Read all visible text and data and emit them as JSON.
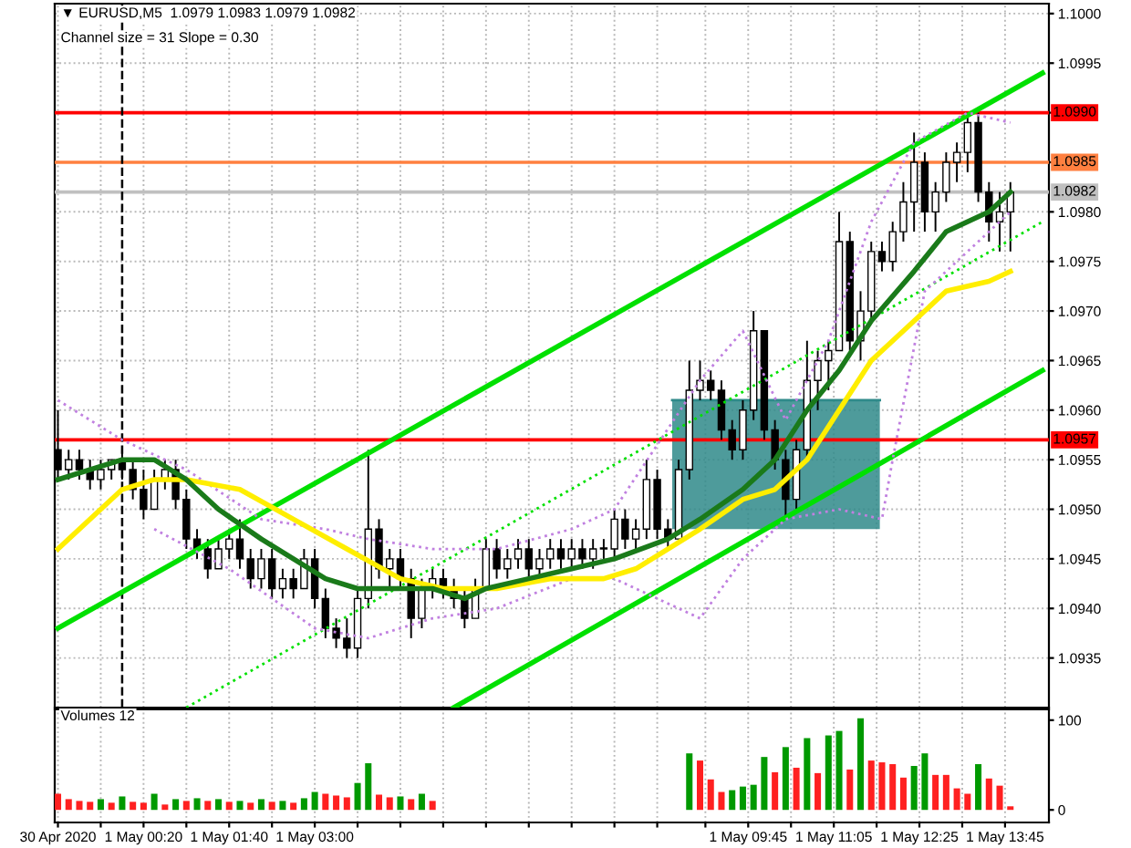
{
  "chart_data": [
    {
      "type": "candlestick",
      "title": "▼ EURUSD,M5  1.0979 1.0983 1.0979 1.0982",
      "subtitle": "Channel size = 31 Slope = 0.30",
      "x": [
        "2020-04-30T23:00",
        "2020-04-30T23:10",
        "2020-04-30T23:20",
        "2020-04-30T23:30",
        "2020-04-30T23:40",
        "2020-04-30T23:50",
        "2020-05-01T00:00",
        "2020-05-01T00:10",
        "2020-05-01T00:20",
        "2020-05-01T00:30",
        "2020-05-01T00:40",
        "2020-05-01T00:50",
        "2020-05-01T01:00",
        "2020-05-01T01:10",
        "2020-05-01T01:20",
        "2020-05-01T01:30",
        "2020-05-01T01:40",
        "2020-05-01T01:50",
        "2020-05-01T02:00",
        "2020-05-01T02:10",
        "2020-05-01T02:20",
        "2020-05-01T02:30",
        "2020-05-01T02:40",
        "2020-05-01T02:50",
        "2020-05-01T03:00",
        "2020-05-01T03:10",
        "2020-05-01T03:20",
        "2020-05-01T03:30",
        "2020-05-01T03:40",
        "2020-05-01T03:50",
        "2020-05-01T04:00",
        "2020-05-01T04:10",
        "2020-05-01T04:20",
        "2020-05-01T04:30",
        "2020-05-01T04:40",
        "2020-05-01T04:50",
        "2020-05-01T05:00",
        "2020-05-01T05:10",
        "2020-05-01T05:20",
        "2020-05-01T05:30",
        "2020-05-01T05:40",
        "2020-05-01T05:50",
        "2020-05-01T06:00",
        "2020-05-01T06:10",
        "2020-05-01T06:20",
        "2020-05-01T06:30",
        "2020-05-01T06:40",
        "2020-05-01T06:50",
        "2020-05-01T07:00",
        "2020-05-01T07:10",
        "2020-05-01T07:20",
        "2020-05-01T07:30",
        "2020-05-01T07:40",
        "2020-05-01T07:50",
        "2020-05-01T08:00",
        "2020-05-01T08:10",
        "2020-05-01T08:20",
        "2020-05-01T08:30",
        "2020-05-01T08:40",
        "2020-05-01T08:50",
        "2020-05-01T09:00",
        "2020-05-01T09:10",
        "2020-05-01T09:20",
        "2020-05-01T09:30",
        "2020-05-01T09:40",
        "2020-05-01T09:50",
        "2020-05-01T10:00",
        "2020-05-01T10:10",
        "2020-05-01T10:20",
        "2020-05-01T10:30",
        "2020-05-01T10:40",
        "2020-05-01T10:50",
        "2020-05-01T11:00",
        "2020-05-01T11:10",
        "2020-05-01T11:20",
        "2020-05-01T11:30",
        "2020-05-01T11:40",
        "2020-05-01T11:50",
        "2020-05-01T12:00",
        "2020-05-01T12:10",
        "2020-05-01T12:20",
        "2020-05-01T12:30",
        "2020-05-01T12:40",
        "2020-05-01T12:50",
        "2020-05-01T13:00",
        "2020-05-01T13:10",
        "2020-05-01T13:20",
        "2020-05-01T13:30",
        "2020-05-01T13:40",
        "2020-05-01T13:50"
      ],
      "ohlc": [
        [
          1.0956,
          1.096,
          1.0953,
          1.0954
        ],
        [
          1.0954,
          1.0956,
          1.0953,
          1.0955
        ],
        [
          1.0955,
          1.0956,
          1.0953,
          1.0954
        ],
        [
          1.0954,
          1.0955,
          1.0952,
          1.0953
        ],
        [
          1.0953,
          1.0955,
          1.0952,
          1.0954
        ],
        [
          1.0954,
          1.0955,
          1.0953,
          1.0955
        ],
        [
          1.0955,
          1.0956,
          1.0953,
          1.0954
        ],
        [
          1.0954,
          1.0955,
          1.0951,
          1.0952
        ],
        [
          1.0952,
          1.0954,
          1.0949,
          1.095
        ],
        [
          1.095,
          1.0954,
          1.095,
          1.0953
        ],
        [
          1.0953,
          1.0955,
          1.0952,
          1.0954
        ],
        [
          1.0954,
          1.0955,
          1.095,
          1.0951
        ],
        [
          1.0951,
          1.0952,
          1.0946,
          1.0947
        ],
        [
          1.0947,
          1.0948,
          1.0945,
          1.0946
        ],
        [
          1.0946,
          1.0947,
          1.0943,
          1.0944
        ],
        [
          1.0944,
          1.0947,
          1.0944,
          1.0946
        ],
        [
          1.0946,
          1.0948,
          1.0945,
          1.0947
        ],
        [
          1.0947,
          1.0949,
          1.0944,
          1.0945
        ],
        [
          1.0945,
          1.0946,
          1.0942,
          1.0943
        ],
        [
          1.0943,
          1.0946,
          1.0942,
          1.0945
        ],
        [
          1.0945,
          1.0946,
          1.0941,
          1.0942
        ],
        [
          1.0942,
          1.0944,
          1.0941,
          1.0943
        ],
        [
          1.0943,
          1.0944,
          1.0941,
          1.0942
        ],
        [
          1.0942,
          1.0946,
          1.0942,
          1.0945
        ],
        [
          1.0945,
          1.0946,
          1.094,
          1.0941
        ],
        [
          1.0941,
          1.0942,
          1.0937,
          1.0938
        ],
        [
          1.0938,
          1.0939,
          1.0936,
          1.0937
        ],
        [
          1.0937,
          1.0939,
          1.0935,
          1.0936
        ],
        [
          1.0936,
          1.0942,
          1.0935,
          1.0941
        ],
        [
          1.0941,
          1.0956,
          1.094,
          1.0948
        ],
        [
          1.0948,
          1.0949,
          1.0943,
          1.0944
        ],
        [
          1.0944,
          1.0946,
          1.0942,
          1.0945
        ],
        [
          1.0945,
          1.0946,
          1.0942,
          1.0943
        ],
        [
          1.0943,
          1.0944,
          1.0937,
          1.0939
        ],
        [
          1.0939,
          1.0943,
          1.0938,
          1.0942
        ],
        [
          1.0942,
          1.0944,
          1.0941,
          1.0943
        ],
        [
          1.0943,
          1.0944,
          1.0941,
          1.0942
        ],
        [
          1.0942,
          1.0943,
          1.094,
          1.0941
        ],
        [
          1.0941,
          1.0942,
          1.0938,
          1.0939
        ],
        [
          1.0939,
          1.0943,
          1.0939,
          1.0942
        ],
        [
          1.0942,
          1.0947,
          1.0942,
          1.0946
        ],
        [
          1.0946,
          1.0947,
          1.0943,
          1.0944
        ],
        [
          1.0944,
          1.0946,
          1.0943,
          1.0945
        ],
        [
          1.0945,
          1.0947,
          1.0944,
          1.0946
        ],
        [
          1.0946,
          1.0947,
          1.0943,
          1.0944
        ],
        [
          1.0944,
          1.0946,
          1.0943,
          1.0945
        ],
        [
          1.0945,
          1.0947,
          1.0944,
          1.0946
        ],
        [
          1.0946,
          1.0947,
          1.0944,
          1.0945
        ],
        [
          1.0945,
          1.0947,
          1.0944,
          1.0946
        ],
        [
          1.0946,
          1.0947,
          1.0944,
          1.0945
        ],
        [
          1.0945,
          1.0947,
          1.0944,
          1.0946
        ],
        [
          1.0946,
          1.0947,
          1.0945,
          1.0946
        ],
        [
          1.0946,
          1.095,
          1.0945,
          1.0949
        ],
        [
          1.0949,
          1.095,
          1.0946,
          1.0947
        ],
        [
          1.0947,
          1.0949,
          1.0946,
          1.0948
        ],
        [
          1.0948,
          1.0955,
          1.0947,
          1.0953
        ],
        [
          1.0953,
          1.0954,
          1.0947,
          1.0948
        ],
        [
          1.0948,
          1.0949,
          1.0946,
          1.0947
        ],
        [
          1.0947,
          1.0955,
          1.0947,
          1.0954
        ],
        [
          1.0954,
          1.0965,
          1.0953,
          1.0962
        ],
        [
          1.0962,
          1.0965,
          1.0961,
          1.0963
        ],
        [
          1.0963,
          1.0964,
          1.0961,
          1.0962
        ],
        [
          1.0962,
          1.0963,
          1.0957,
          1.0958
        ],
        [
          1.0958,
          1.0959,
          1.0955,
          1.0956
        ],
        [
          1.0956,
          1.0961,
          1.0955,
          1.096
        ],
        [
          1.096,
          1.097,
          1.0959,
          1.0968
        ],
        [
          1.0968,
          1.0968,
          1.0957,
          1.0958
        ],
        [
          1.0958,
          1.0959,
          1.0954,
          1.0955
        ],
        [
          1.0955,
          1.0956,
          1.0949,
          1.0951
        ],
        [
          1.0951,
          1.0957,
          1.095,
          1.0956
        ],
        [
          1.0956,
          1.0967,
          1.0955,
          1.0963
        ],
        [
          1.0963,
          1.0966,
          1.096,
          1.0965
        ],
        [
          1.0965,
          1.0967,
          1.0962,
          1.0966
        ],
        [
          1.0966,
          1.098,
          1.0966,
          1.0977
        ],
        [
          1.0977,
          1.0978,
          1.0966,
          1.0967
        ],
        [
          1.0967,
          1.0972,
          1.0965,
          1.097
        ],
        [
          1.097,
          1.0977,
          1.0969,
          1.0976
        ],
        [
          1.0976,
          1.0977,
          1.0974,
          1.0975
        ],
        [
          1.0975,
          1.0979,
          1.0974,
          1.0978
        ],
        [
          1.0978,
          1.0983,
          1.0977,
          1.0981
        ],
        [
          1.0981,
          1.0988,
          1.0978,
          1.0985
        ],
        [
          1.0985,
          1.0986,
          1.0978,
          1.098
        ],
        [
          1.098,
          1.0983,
          1.0978,
          1.0982
        ],
        [
          1.0982,
          1.0986,
          1.0981,
          1.0985
        ],
        [
          1.0985,
          1.0987,
          1.0983,
          1.0986
        ],
        [
          1.0986,
          1.099,
          1.0984,
          1.0989
        ],
        [
          1.0989,
          1.099,
          1.0981,
          1.0982
        ],
        [
          1.0982,
          1.0983,
          1.0977,
          1.0979
        ],
        [
          1.0979,
          1.0982,
          1.0976,
          1.098
        ],
        [
          1.098,
          1.0983,
          1.0976,
          1.0982
        ]
      ],
      "series": [
        {
          "type": "line",
          "color": "#2f8a8a",
          "line_style": "solid",
          "x": [
            "2020-05-01T08:34",
            "2020-05-01T11:48"
          ],
          "values": [
            1.0961,
            1.0961
          ],
          "lower": [
            1.0948,
            1.0948
          ],
          "upper": [
            1.0961,
            1.0961
          ]
        },
        {
          "type": "line",
          "color": "#00e000",
          "line_style": "solid",
          "x": [
            "2020-04-30T23:00",
            "2020-05-01T14:20"
          ],
          "values": [
            1.0938,
            1.0994
          ]
        },
        {
          "type": "line",
          "color": "#00e000",
          "line_style": "dotted",
          "x": [
            "2020-05-01T01:00",
            "2020-05-01T14:20"
          ],
          "values": [
            1.093,
            1.0979
          ]
        },
        {
          "type": "line",
          "color": "#00e000",
          "line_style": "solid",
          "x": [
            "2020-05-01T05:10",
            "2020-05-01T14:20"
          ],
          "values": [
            1.093,
            1.0964
          ]
        },
        {
          "type": "line",
          "color": "#c080e0",
          "line_style": "dotted",
          "x": [
            "2020-04-30T23:00",
            "2020-05-01T00:00",
            "2020-05-01T01:00",
            "2020-05-01T02:10",
            "2020-05-01T03:10",
            "2020-05-01T03:50",
            "2020-05-01T04:50",
            "2020-05-01T05:50",
            "2020-05-01T07:00",
            "2020-05-01T07:40",
            "2020-05-01T09:00",
            "2020-05-01T09:40",
            "2020-05-01T10:20",
            "2020-05-01T11:00",
            "2020-05-01T11:40",
            "2020-05-01T12:20",
            "2020-05-01T13:10",
            "2020-05-01T13:50"
          ],
          "values": [
            1.0961,
            1.0957,
            1.0954,
            1.0949,
            1.0948,
            1.0947,
            1.0946,
            1.0946,
            1.0948,
            1.095,
            1.0963,
            1.0968,
            1.0959,
            1.0967,
            1.0979,
            1.0987,
            1.099,
            1.0989
          ]
        },
        {
          "type": "line",
          "color": "#c080e0",
          "line_style": "dotted",
          "x": [
            "2020-05-01T00:30",
            "2020-05-01T01:40",
            "2020-05-01T03:00",
            "2020-05-01T03:50",
            "2020-05-01T04:50",
            "2020-05-01T05:50",
            "2020-05-01T07:00",
            "2020-05-01T07:40",
            "2020-05-01T09:00",
            "2020-05-01T09:40",
            "2020-05-01T10:20",
            "2020-05-01T11:10",
            "2020-05-01T11:50",
            "2020-05-01T12:00",
            "2020-05-01T12:30",
            "2020-05-01T13:10",
            "2020-05-01T13:50"
          ],
          "values": [
            1.0948,
            1.0944,
            1.0938,
            1.0937,
            1.0939,
            1.094,
            1.0943,
            1.0943,
            1.0939,
            1.0945,
            1.0949,
            1.095,
            1.0949,
            1.0955,
            1.0972,
            1.0976,
            1.098
          ]
        },
        {
          "type": "line",
          "color": "#ffee00",
          "line_style": "solid",
          "x": [
            "2020-04-30T23:00",
            "2020-05-01T00:00",
            "2020-05-01T00:30",
            "2020-05-01T01:00",
            "2020-05-01T01:50",
            "2020-05-01T02:40",
            "2020-05-01T03:30",
            "2020-05-01T04:20",
            "2020-05-01T05:00",
            "2020-05-01T05:50",
            "2020-05-01T06:40",
            "2020-05-01T07:30",
            "2020-05-01T08:00",
            "2020-05-01T08:30",
            "2020-05-01T09:00",
            "2020-05-01T09:40",
            "2020-05-01T10:10",
            "2020-05-01T10:40",
            "2020-05-01T11:10",
            "2020-05-01T11:40",
            "2020-05-01T12:20",
            "2020-05-01T12:50",
            "2020-05-01T13:30",
            "2020-05-01T13:50"
          ],
          "values": [
            1.0946,
            1.0952,
            1.0953,
            1.0953,
            1.0952,
            1.0949,
            1.0946,
            1.0943,
            1.0942,
            1.0942,
            1.0943,
            1.0943,
            1.0944,
            1.0946,
            1.0948,
            1.0951,
            1.0952,
            1.0955,
            1.096,
            1.0965,
            1.0969,
            1.0972,
            1.0973,
            1.0974
          ]
        },
        {
          "type": "line",
          "color": "#1a7a1a",
          "line_style": "solid",
          "x": [
            "2020-04-30T23:00",
            "2020-05-01T00:00",
            "2020-05-01T00:30",
            "2020-05-01T01:00",
            "2020-05-01T01:30",
            "2020-05-01T02:10",
            "2020-05-01T02:40",
            "2020-05-01T03:10",
            "2020-05-01T03:40",
            "2020-05-01T04:20",
            "2020-05-01T04:50",
            "2020-05-01T05:20",
            "2020-05-01T05:40",
            "2020-05-01T06:20",
            "2020-05-01T07:00",
            "2020-05-01T07:40",
            "2020-05-01T08:30",
            "2020-05-01T09:00",
            "2020-05-01T09:40",
            "2020-05-01T10:10",
            "2020-05-01T10:40",
            "2020-05-01T11:10",
            "2020-05-01T11:40",
            "2020-05-01T12:20",
            "2020-05-01T12:50",
            "2020-05-01T13:30",
            "2020-05-01T13:50"
          ],
          "values": [
            1.0953,
            1.0955,
            1.0955,
            1.0953,
            1.095,
            1.0947,
            1.0945,
            1.0943,
            1.0942,
            1.0942,
            1.0942,
            1.0941,
            1.0942,
            1.0943,
            1.0944,
            1.0945,
            1.0947,
            1.0949,
            1.0952,
            1.0955,
            1.096,
            1.0964,
            1.0969,
            1.0974,
            1.0978,
            1.098,
            1.0982
          ]
        }
      ],
      "ref_lines": [
        {
          "axis": "y",
          "value": 1.099,
          "label": "1.0990",
          "color": "#ff0000"
        },
        {
          "axis": "y",
          "value": 1.0985,
          "label": "1.0985",
          "color": "#ff8040"
        },
        {
          "axis": "y",
          "value": 1.0982,
          "label": "1.0982",
          "color": "#c0c0c0"
        },
        {
          "axis": "y",
          "value": 1.0957,
          "label": "1.0957",
          "color": "#ff0000"
        },
        {
          "axis": "x",
          "value": "2020-05-01T00:00",
          "color": "#000000",
          "line_style": "dashed"
        }
      ],
      "xlim": [
        "2020-04-30T22:57",
        "2020-05-01T14:26"
      ],
      "xticks": [
        {
          "value": "2020-04-30T23:00",
          "label": null
        },
        {
          "value": "2020-04-30T23:40",
          "label": null
        },
        {
          "value": "2020-05-01T00:20",
          "label": null
        },
        {
          "value": "2020-05-01T01:00",
          "label": null
        },
        {
          "value": "2020-05-01T01:40",
          "label": null
        },
        {
          "value": "2020-05-01T02:20",
          "label": null
        },
        {
          "value": "2020-05-01T03:00",
          "label": null
        },
        {
          "value": "2020-05-01T03:40",
          "label": null
        },
        {
          "value": "2020-05-01T04:20",
          "label": null
        },
        {
          "value": "2020-05-01T05:00",
          "label": null
        },
        {
          "value": "2020-05-01T05:40",
          "label": null
        },
        {
          "value": "2020-05-01T06:20",
          "label": null
        },
        {
          "value": "2020-05-01T07:00",
          "label": null
        },
        {
          "value": "2020-05-01T07:40",
          "label": null
        },
        {
          "value": "2020-05-01T08:20",
          "label": null
        },
        {
          "value": "2020-05-01T09:05",
          "label": null
        },
        {
          "value": "2020-05-01T09:45",
          "label": null
        },
        {
          "value": "2020-05-01T10:25",
          "label": null
        },
        {
          "value": "2020-05-01T11:05",
          "label": null
        },
        {
          "value": "2020-05-01T11:45",
          "label": null
        },
        {
          "value": "2020-05-01T12:25",
          "label": null
        },
        {
          "value": "2020-05-01T13:05",
          "label": null
        },
        {
          "value": "2020-05-01T13:45",
          "label": null
        }
      ],
      "ylim": [
        1.093,
        1.1001
      ],
      "yticks": [
        {
          "value": 1.0935,
          "label": "1.0935"
        },
        {
          "value": 1.094,
          "label": "1.0940"
        },
        {
          "value": 1.0945,
          "label": "1.0945"
        },
        {
          "value": 1.095,
          "label": "1.0950"
        },
        {
          "value": 1.0955,
          "label": "1.0955"
        },
        {
          "value": 1.096,
          "label": "1.0960"
        },
        {
          "value": 1.0965,
          "label": "1.0965"
        },
        {
          "value": 1.097,
          "label": "1.0970"
        },
        {
          "value": 1.0975,
          "label": "1.0975"
        },
        {
          "value": 1.098,
          "label": "1.0980"
        },
        {
          "value": 1.0985,
          "label": null
        },
        {
          "value": 1.099,
          "label": null
        },
        {
          "value": 1.0995,
          "label": "1.0995"
        },
        {
          "value": 1.1,
          "label": "1.1000"
        }
      ],
      "grid": true,
      "tick_labels": "y"
    },
    {
      "type": "bar",
      "title": "Volumes 12",
      "x": [
        "2020-04-30T23:00",
        "2020-04-30T23:10",
        "2020-04-30T23:20",
        "2020-04-30T23:30",
        "2020-04-30T23:40",
        "2020-04-30T23:50",
        "2020-05-01T00:00",
        "2020-05-01T00:10",
        "2020-05-01T00:20",
        "2020-05-01T00:30",
        "2020-05-01T00:40",
        "2020-05-01T00:50",
        "2020-05-01T01:00",
        "2020-05-01T01:10",
        "2020-05-01T01:20",
        "2020-05-01T01:30",
        "2020-05-01T01:40",
        "2020-05-01T01:50",
        "2020-05-01T02:00",
        "2020-05-01T02:10",
        "2020-05-01T02:20",
        "2020-05-01T02:30",
        "2020-05-01T02:40",
        "2020-05-01T02:50",
        "2020-05-01T03:00",
        "2020-05-01T03:10",
        "2020-05-01T03:20",
        "2020-05-01T03:30",
        "2020-05-01T03:40",
        "2020-05-01T03:50",
        "2020-05-01T04:00",
        "2020-05-01T04:10",
        "2020-05-01T04:20",
        "2020-05-01T04:30",
        "2020-05-01T04:40",
        "2020-05-01T04:50",
        "2020-05-01T05:00",
        "2020-05-01T05:10",
        "2020-05-01T05:20",
        "2020-05-01T05:30",
        "2020-05-01T05:40",
        "2020-05-01T05:50",
        "2020-05-01T06:00",
        "2020-05-01T06:10",
        "2020-05-01T06:20",
        "2020-05-01T06:30",
        "2020-05-01T06:40",
        "2020-05-01T06:50",
        "2020-05-01T07:00",
        "2020-05-01T07:10",
        "2020-05-01T07:20",
        "2020-05-01T07:30",
        "2020-05-01T07:40",
        "2020-05-01T07:50",
        "2020-05-01T08:00",
        "2020-05-01T08:10",
        "2020-05-01T08:20",
        "2020-05-01T08:30",
        "2020-05-01T08:40",
        "2020-05-01T08:50",
        "2020-05-01T09:00",
        "2020-05-01T09:10",
        "2020-05-01T09:20",
        "2020-05-01T09:30",
        "2020-05-01T09:40",
        "2020-05-01T09:50",
        "2020-05-01T10:00",
        "2020-05-01T10:10",
        "2020-05-01T10:20",
        "2020-05-01T10:30",
        "2020-05-01T10:40",
        "2020-05-01T10:50",
        "2020-05-01T11:00",
        "2020-05-01T11:10",
        "2020-05-01T11:20",
        "2020-05-01T11:30",
        "2020-05-01T11:40",
        "2020-05-01T11:50",
        "2020-05-01T12:00",
        "2020-05-01T12:10",
        "2020-05-01T12:20",
        "2020-05-01T12:30",
        "2020-05-01T12:40",
        "2020-05-01T12:50",
        "2020-05-01T13:00",
        "2020-05-01T13:10",
        "2020-05-01T13:20",
        "2020-05-01T13:30",
        "2020-05-01T13:40",
        "2020-05-01T13:50"
      ],
      "values": [
        18,
        12,
        10,
        9,
        12,
        8,
        15,
        9,
        8,
        18,
        6,
        12,
        10,
        13,
        10,
        12,
        9,
        10,
        8,
        12,
        9,
        10,
        8,
        13,
        20,
        18,
        16,
        14,
        30,
        52,
        17,
        14,
        15,
        12,
        18,
        10,
        null,
        null,
        null,
        null,
        null,
        null,
        null,
        null,
        null,
        null,
        null,
        null,
        null,
        null,
        null,
        null,
        null,
        null,
        null,
        null,
        null,
        null,
        null,
        63,
        55,
        34,
        20,
        22,
        26,
        28,
        59,
        42,
        70,
        47,
        80,
        41,
        83,
        88,
        45,
        102,
        55,
        53,
        51,
        36,
        49,
        63,
        39,
        39,
        24,
        18,
        51,
        35,
        27,
        4
      ],
      "colors": [
        "#ff2020",
        "#ff2020",
        "#ff2020",
        "#ff2020",
        "#009900",
        "#ff2020",
        "#009900",
        "#ff2020",
        "#ff2020",
        "#009900",
        "#ff2020",
        "#009900",
        "#ff2020",
        "#009900",
        "#ff2020",
        "#009900",
        "#ff2020",
        "#009900",
        "#ff2020",
        "#009900",
        "#ff2020",
        "#009900",
        "#ff2020",
        "#009900",
        "#009900",
        "#ff2020",
        "#ff2020",
        "#ff2020",
        "#009900",
        "#009900",
        "#ff2020",
        "#ff2020",
        "#009900",
        "#ff2020",
        "#009900",
        "#ff2020",
        null,
        null,
        null,
        null,
        null,
        null,
        null,
        null,
        null,
        null,
        null,
        null,
        null,
        null,
        null,
        null,
        null,
        null,
        null,
        null,
        null,
        null,
        null,
        "#009900",
        "#ff2020",
        "#ff2020",
        "#ff2020",
        "#009900",
        "#009900",
        "#009900",
        "#009900",
        "#ff2020",
        "#009900",
        "#ff2020",
        "#009900",
        "#ff2020",
        "#009900",
        "#009900",
        "#ff2020",
        "#009900",
        "#ff2020",
        "#ff2020",
        "#ff2020",
        "#ff2020",
        "#009900",
        "#009900",
        "#ff2020",
        "#ff2020",
        "#ff2020",
        "#ff2020",
        "#009900",
        "#ff2020",
        "#ff2020",
        "#ff2020"
      ],
      "xlim": [
        "2020-04-30T22:57",
        "2020-05-01T14:26"
      ],
      "xticks": [
        {
          "value": "2020-04-30T23:00",
          "label": "30 Apr 2020"
        },
        {
          "value": "2020-04-30T23:40",
          "label": null
        },
        {
          "value": "2020-05-01T00:20",
          "label": "1 May 00:20"
        },
        {
          "value": "2020-05-01T01:00",
          "label": null
        },
        {
          "value": "2020-05-01T01:40",
          "label": "1 May 01:40"
        },
        {
          "value": "2020-05-01T02:20",
          "label": null
        },
        {
          "value": "2020-05-01T03:00",
          "label": "1 May 03:00"
        },
        {
          "value": "2020-05-01T03:40",
          "label": null
        },
        {
          "value": "2020-05-01T04:20",
          "label": null
        },
        {
          "value": "2020-05-01T05:00",
          "label": null
        },
        {
          "value": "2020-05-01T05:40",
          "label": null
        },
        {
          "value": "2020-05-01T06:20",
          "label": null
        },
        {
          "value": "2020-05-01T07:00",
          "label": null
        },
        {
          "value": "2020-05-01T07:40",
          "label": null
        },
        {
          "value": "2020-05-01T08:20",
          "label": null
        },
        {
          "value": "2020-05-01T09:05",
          "label": null
        },
        {
          "value": "2020-05-01T09:45",
          "label": "1 May 09:45"
        },
        {
          "value": "2020-05-01T10:25",
          "label": null
        },
        {
          "value": "2020-05-01T11:05",
          "label": "1 May 11:05"
        },
        {
          "value": "2020-05-01T11:45",
          "label": null
        },
        {
          "value": "2020-05-01T12:25",
          "label": "1 May 12:25"
        },
        {
          "value": "2020-05-01T13:05",
          "label": null
        },
        {
          "value": "2020-05-01T13:45",
          "label": "1 May 13:45"
        }
      ],
      "ylim": [
        -14,
        112
      ],
      "yticks": [
        0,
        100
      ],
      "grid": "x"
    }
  ]
}
